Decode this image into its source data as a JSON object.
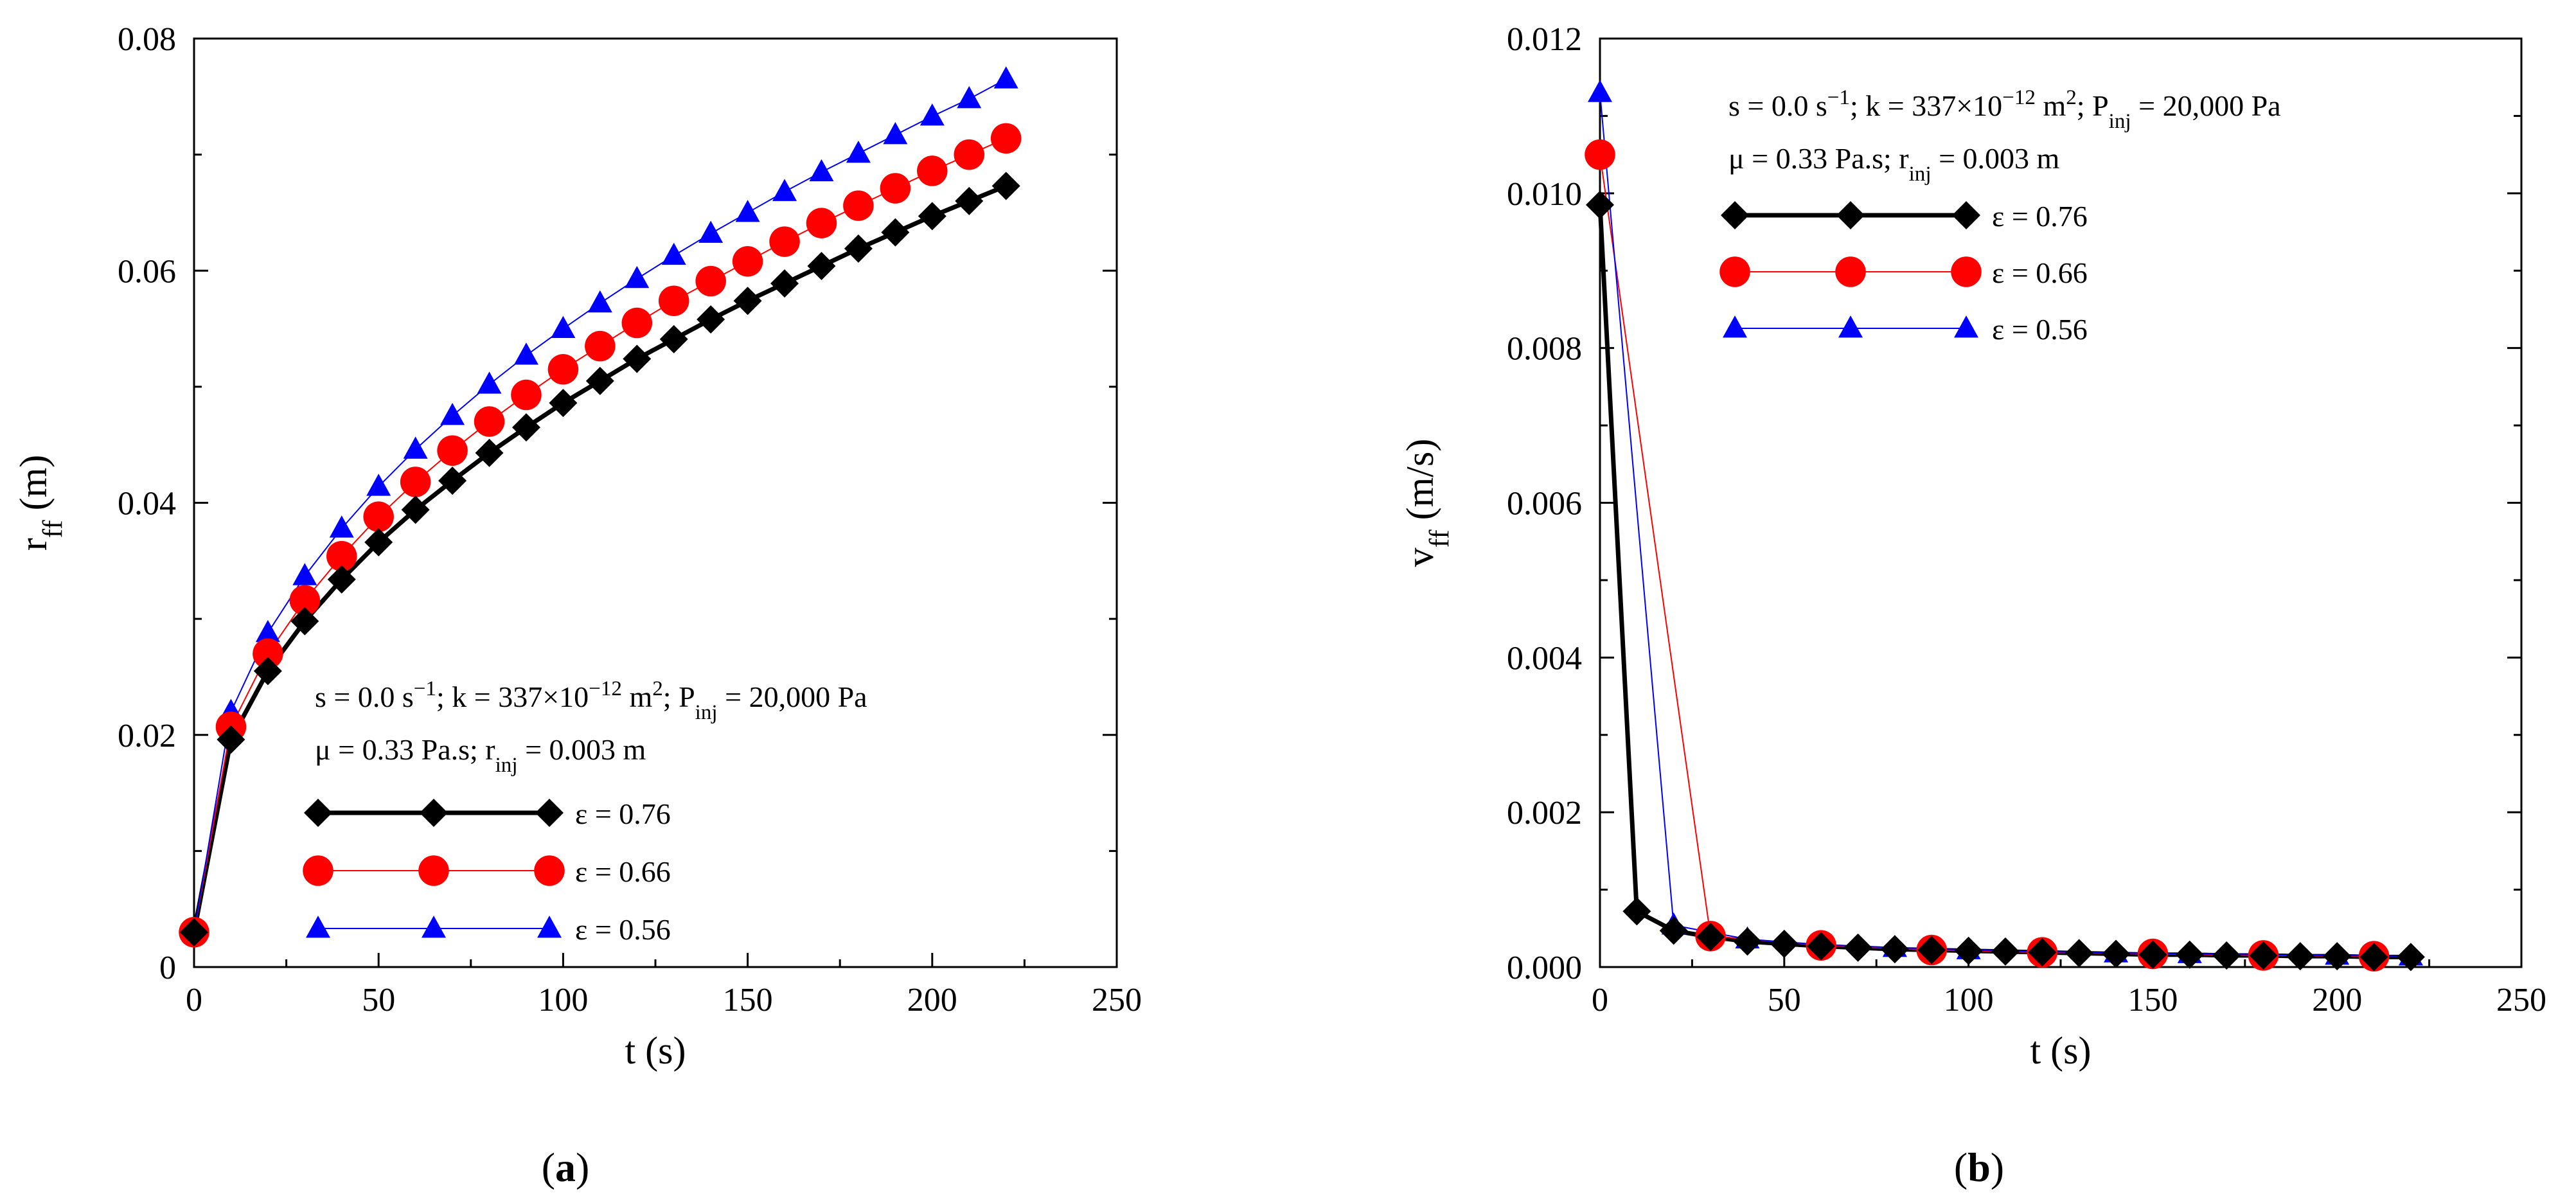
{
  "chart_data": [
    {
      "type": "line",
      "panel_label": "a",
      "xlabel": "t (s)",
      "ylabel": {
        "base": "r",
        "sub": "ff",
        "unit": " (m)"
      },
      "xlim": [
        0,
        250
      ],
      "ylim": [
        0,
        0.08
      ],
      "xticks": [
        0,
        50,
        100,
        150,
        200,
        250
      ],
      "yticks": [
        0,
        0.02,
        0.04,
        0.06,
        0.08
      ],
      "xtick_labels": [
        "0",
        "50",
        "100",
        "150",
        "200",
        "250"
      ],
      "ytick_labels": [
        "0",
        "0.02",
        "0.04",
        "0.06",
        "0.08"
      ],
      "annotation": {
        "line1": [
          {
            "t": "s = 0.0 s"
          },
          {
            "t": "−1",
            "sup": true
          },
          {
            "t": "; k = 337×10"
          },
          {
            "t": "−12",
            "sup": true
          },
          {
            "t": " m"
          },
          {
            "t": "2",
            "sup": true
          },
          {
            "t": ";  P"
          },
          {
            "t": "inj",
            "sub": true
          },
          {
            "t": " = 20,000 Pa"
          }
        ],
        "line2": [
          {
            "t": "μ = 0.33 Pa.s; r"
          },
          {
            "t": "inj",
            "sub": true
          },
          {
            "t": " = 0.003 m"
          }
        ]
      },
      "legend_placement": "lower-center",
      "series": [
        {
          "name": "ε = 0.76",
          "marker": "diamond",
          "color": "#000000",
          "x": [
            0,
            10,
            20,
            30,
            40,
            50,
            60,
            70,
            80,
            90,
            100,
            110,
            120,
            130,
            140,
            150,
            160,
            170,
            180,
            190,
            200,
            210,
            220
          ],
          "y": [
            0.003,
            0.0196,
            0.0255,
            0.0298,
            0.0334,
            0.0366,
            0.0394,
            0.0419,
            0.0443,
            0.0465,
            0.0486,
            0.0505,
            0.0524,
            0.0541,
            0.0558,
            0.0574,
            0.0589,
            0.0604,
            0.0619,
            0.0633,
            0.0647,
            0.066,
            0.0673
          ]
        },
        {
          "name": "ε = 0.66",
          "marker": "circle",
          "color": "#ff0000",
          "x": [
            0,
            10,
            20,
            30,
            40,
            50,
            60,
            70,
            80,
            90,
            100,
            110,
            120,
            130,
            140,
            150,
            160,
            170,
            180,
            190,
            200,
            210,
            220
          ],
          "y": [
            0.003,
            0.0207,
            0.027,
            0.0316,
            0.0354,
            0.0388,
            0.0418,
            0.0445,
            0.047,
            0.0493,
            0.0515,
            0.0535,
            0.0555,
            0.0574,
            0.0591,
            0.0608,
            0.0625,
            0.0641,
            0.0656,
            0.0671,
            0.0686,
            0.07,
            0.0714
          ]
        },
        {
          "name": "ε = 0.56",
          "marker": "triangle",
          "color": "#0000ff",
          "x": [
            0,
            10,
            20,
            30,
            40,
            50,
            60,
            70,
            80,
            90,
            100,
            110,
            120,
            130,
            140,
            150,
            160,
            170,
            180,
            190,
            200,
            210,
            220
          ],
          "y": [
            0.003,
            0.022,
            0.0288,
            0.0337,
            0.0378,
            0.0414,
            0.0446,
            0.0475,
            0.0502,
            0.0527,
            0.055,
            0.0572,
            0.0593,
            0.0613,
            0.0632,
            0.065,
            0.0668,
            0.0685,
            0.0701,
            0.0717,
            0.0733,
            0.0748,
            0.0765
          ]
        }
      ]
    },
    {
      "type": "line",
      "panel_label": "b",
      "xlabel": "t (s)",
      "ylabel": {
        "base": "v",
        "sub": "ff",
        "unit": " (m/s)"
      },
      "xlim": [
        0,
        250
      ],
      "ylim": [
        0,
        0.012
      ],
      "xticks": [
        0,
        50,
        100,
        150,
        200,
        250
      ],
      "yticks": [
        0,
        0.002,
        0.004,
        0.006,
        0.008,
        0.01,
        0.012
      ],
      "xtick_labels": [
        "0",
        "50",
        "100",
        "150",
        "200",
        "250"
      ],
      "ytick_labels": [
        "0.000",
        "0.002",
        "0.004",
        "0.006",
        "0.008",
        "0.010",
        "0.012"
      ],
      "annotation": {
        "line1": [
          {
            "t": "s = 0.0 s"
          },
          {
            "t": "−1",
            "sup": true
          },
          {
            "t": "; k = 337×10"
          },
          {
            "t": "−12",
            "sup": true
          },
          {
            "t": " m"
          },
          {
            "t": "2",
            "sup": true
          },
          {
            "t": "; P"
          },
          {
            "t": "inj",
            "sub": true
          },
          {
            "t": " = 20,000 Pa"
          }
        ],
        "line2": [
          {
            "t": "μ = 0.33 Pa.s; r"
          },
          {
            "t": "inj",
            "sub": true
          },
          {
            "t": " = 0.003 m"
          }
        ]
      },
      "legend_placement": "upper-center",
      "series": [
        {
          "name": "ε = 0.76",
          "marker": "diamond",
          "color": "#000000",
          "x": [
            0,
            10,
            20,
            30,
            40,
            50,
            60,
            70,
            80,
            90,
            100,
            110,
            120,
            130,
            140,
            150,
            160,
            170,
            180,
            190,
            200,
            210,
            220
          ],
          "y": [
            0.00985,
            0.00072,
            0.00047,
            0.00039,
            0.00033,
            0.0003,
            0.00027,
            0.00025,
            0.00023,
            0.00022,
            0.00021,
            0.0002,
            0.00019,
            0.00018,
            0.00017,
            0.00016,
            0.00016,
            0.00015,
            0.00015,
            0.00014,
            0.00014,
            0.00013,
            0.00013
          ]
        },
        {
          "name": "ε = 0.66",
          "marker": "circle",
          "color": "#ff0000",
          "x": [
            0,
            30,
            60,
            90,
            120,
            150,
            180,
            210
          ],
          "y": [
            0.0105,
            0.0004,
            0.00028,
            0.00022,
            0.00019,
            0.00017,
            0.00015,
            0.00014
          ]
        },
        {
          "name": "ε = 0.56",
          "marker": "triangle",
          "color": "#0000ff",
          "x": [
            0,
            20,
            40,
            60,
            80,
            100,
            120,
            140,
            160,
            180,
            200,
            220
          ],
          "y": [
            0.0113,
            0.00054,
            0.00036,
            0.00029,
            0.00025,
            0.00022,
            0.0002,
            0.00018,
            0.00017,
            0.00016,
            0.00015,
            0.00014
          ]
        }
      ]
    }
  ]
}
